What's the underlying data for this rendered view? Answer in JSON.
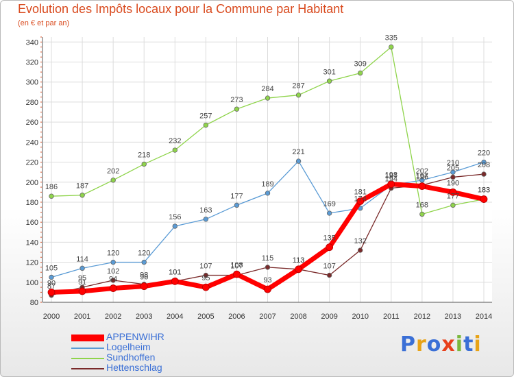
{
  "header": {
    "title": "Evolution des Impôts locaux pour la Commune par Habitant",
    "subtitle": "(en € et par an)"
  },
  "logo": {
    "text": "Proxiti",
    "letter_colors": [
      "#3a6fd6",
      "#e8a317",
      "#3a6fd6",
      "#e8401b",
      "#7ab83c",
      "#3a6fd6",
      "#e8a317"
    ]
  },
  "chart_data": {
    "type": "line",
    "title": "Evolution des Impôts locaux pour la Commune par Habitant",
    "ylabel": "(en € et par an)",
    "xlabel": "",
    "categories": [
      "2000",
      "2001",
      "2002",
      "2003",
      "2004",
      "2005",
      "2006",
      "2007",
      "2008",
      "2009",
      "2010",
      "2011",
      "2012",
      "2013",
      "2014"
    ],
    "ylim": [
      80,
      345
    ],
    "yticks": [
      80,
      100,
      120,
      140,
      160,
      180,
      200,
      220,
      240,
      260,
      280,
      300,
      320,
      340
    ],
    "grid": true,
    "legend_position": "bottom-left",
    "series": [
      {
        "name": "APPENWIHR",
        "color": "#ff0000",
        "values": [
          90,
          91,
          94,
          96,
          101,
          95,
          108,
          93,
          113,
          135,
          181,
          198,
          196,
          190,
          183
        ],
        "labels": [
          "90",
          "91",
          "94",
          "96",
          "101",
          "95",
          "108",
          "93",
          "113",
          "135",
          "181",
          "198",
          "196",
          "190",
          "183"
        ]
      },
      {
        "name": "Logelheim",
        "color": "#5a9bd5",
        "values": [
          105,
          114,
          120,
          120,
          156,
          163,
          177,
          189,
          221,
          169,
          174,
          197,
          202,
          210,
          220
        ],
        "labels": [
          "105",
          "114",
          "120",
          "120",
          "156",
          "163",
          "177",
          "189",
          "221",
          "169",
          "174",
          "197",
          "202",
          "210",
          "220"
        ]
      },
      {
        "name": "Sundhoffen",
        "color": "#8fd44b",
        "values": [
          186,
          187,
          202,
          218,
          232,
          257,
          273,
          284,
          287,
          301,
          309,
          335,
          168,
          177,
          183
        ],
        "labels": [
          "186",
          "187",
          "202",
          "218",
          "232",
          "257",
          "273",
          "284",
          "287",
          "301",
          "309",
          "335",
          "168",
          "177",
          "183"
        ]
      },
      {
        "name": "Hettenschlag",
        "color": "#7a2a2a",
        "values": [
          87,
          95,
          102,
          98,
          101,
          107,
          107,
          115,
          113,
          107,
          132,
          194,
          197,
          205,
          208
        ],
        "labels": [
          "87",
          "95",
          "102",
          "98",
          "101",
          "107",
          "107",
          "115",
          "113",
          "107",
          "132",
          "194",
          "197",
          "205",
          "208"
        ]
      }
    ]
  }
}
